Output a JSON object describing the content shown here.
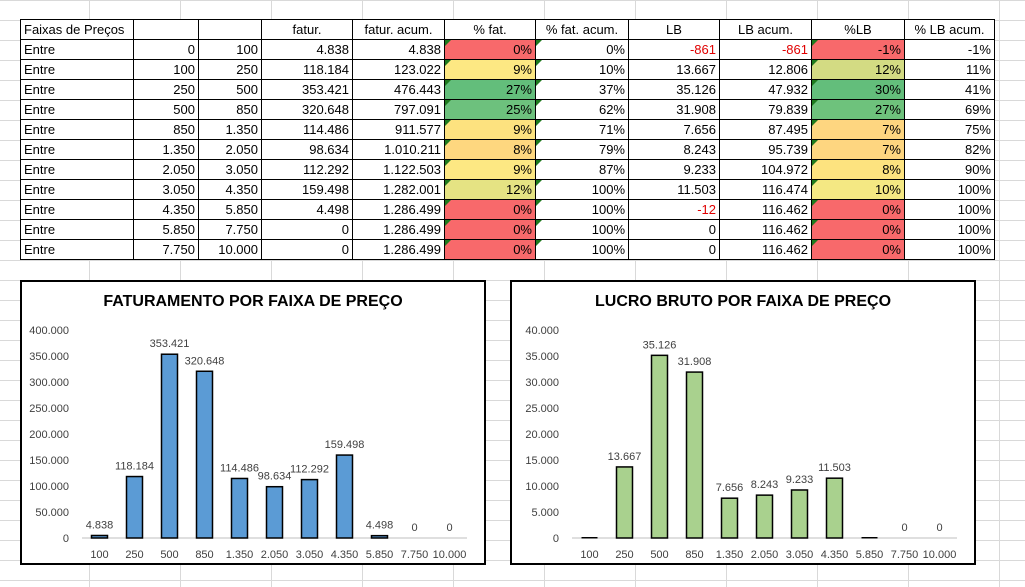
{
  "table": {
    "headers": [
      "Faixas de Preços",
      "",
      "",
      "fatur.",
      "fatur. acum.",
      "% fat.",
      "% fat. acum.",
      "LB",
      "LB acum.",
      "%LB",
      "% LB acum."
    ],
    "rows": [
      [
        "Entre",
        "0",
        "100",
        "4.838",
        "4.838",
        "0%",
        "0%",
        "-861",
        "-861",
        "-1%",
        "-1%"
      ],
      [
        "Entre",
        "100",
        "250",
        "118.184",
        "123.022",
        "9%",
        "10%",
        "13.667",
        "12.806",
        "12%",
        "11%"
      ],
      [
        "Entre",
        "250",
        "500",
        "353.421",
        "476.443",
        "27%",
        "37%",
        "35.126",
        "47.932",
        "30%",
        "41%"
      ],
      [
        "Entre",
        "500",
        "850",
        "320.648",
        "797.091",
        "25%",
        "62%",
        "31.908",
        "79.839",
        "27%",
        "69%"
      ],
      [
        "Entre",
        "850",
        "1.350",
        "114.486",
        "911.577",
        "9%",
        "71%",
        "7.656",
        "87.495",
        "7%",
        "75%"
      ],
      [
        "Entre",
        "1.350",
        "2.050",
        "98.634",
        "1.010.211",
        "8%",
        "79%",
        "8.243",
        "95.739",
        "7%",
        "82%"
      ],
      [
        "Entre",
        "2.050",
        "3.050",
        "112.292",
        "1.122.503",
        "9%",
        "87%",
        "9.233",
        "104.972",
        "8%",
        "90%"
      ],
      [
        "Entre",
        "3.050",
        "4.350",
        "159.498",
        "1.282.001",
        "12%",
        "100%",
        "11.503",
        "116.474",
        "10%",
        "100%"
      ],
      [
        "Entre",
        "4.350",
        "5.850",
        "4.498",
        "1.286.499",
        "0%",
        "100%",
        "-12",
        "116.462",
        "0%",
        "100%"
      ],
      [
        "Entre",
        "5.850",
        "7.750",
        "0",
        "1.286.499",
        "0%",
        "100%",
        "0",
        "116.462",
        "0%",
        "100%"
      ],
      [
        "Entre",
        "7.750",
        "10.000",
        "0",
        "1.286.499",
        "0%",
        "100%",
        "0",
        "116.462",
        "0%",
        "100%"
      ]
    ],
    "pct_fat_colors": [
      "#f8696b",
      "#fde883",
      "#63be7b",
      "#6dc17d",
      "#fde27f",
      "#fed77f",
      "#fde883",
      "#e5e383",
      "#f8696b",
      "#f8696b",
      "#f8696b"
    ],
    "pct_lb_colors": [
      "#f8696b",
      "#d3db83",
      "#63be7b",
      "#6ec27c",
      "#fed680",
      "#fed680",
      "#fde37f",
      "#f4e883",
      "#f8696b",
      "#f8696b",
      "#f8696b"
    ],
    "negative_color": "#e00000"
  },
  "chart_data": [
    {
      "type": "bar",
      "title": "FATURAMENTO POR FAIXA DE PREÇO",
      "categories": [
        "100",
        "250",
        "500",
        "850",
        "1.350",
        "2.050",
        "3.050",
        "4.350",
        "5.850",
        "7.750",
        "10.000"
      ],
      "values": [
        4838,
        118184,
        353421,
        320648,
        114486,
        98634,
        112292,
        159498,
        4498,
        0,
        0
      ],
      "value_labels": [
        "4.838",
        "118.184",
        "353.421",
        "320.648",
        "114.486",
        "98.634",
        "112.292",
        "159.498",
        "4.498",
        "0",
        "0"
      ],
      "yticks": [
        "0",
        "50.000",
        "100.000",
        "150.000",
        "200.000",
        "250.000",
        "300.000",
        "350.000",
        "400.000"
      ],
      "ylim": [
        0,
        400000
      ],
      "bar_color": "#5b9bd5",
      "xlabel": "",
      "ylabel": "",
      "grid": false
    },
    {
      "type": "bar",
      "title": "LUCRO BRUTO POR FAIXA DE PREÇO",
      "categories": [
        "100",
        "250",
        "500",
        "850",
        "1.350",
        "2.050",
        "3.050",
        "4.350",
        "5.850",
        "7.750",
        "10.000"
      ],
      "values": [
        -861,
        13667,
        35126,
        31908,
        7656,
        8243,
        9233,
        11503,
        -12,
        0,
        0
      ],
      "value_labels": [
        "",
        "13.667",
        "35.126",
        "31.908",
        "7.656",
        "8.243",
        "9.233",
        "11.503",
        "",
        "0",
        "0"
      ],
      "yticks": [
        "0",
        "5.000",
        "10.000",
        "15.000",
        "20.000",
        "25.000",
        "30.000",
        "35.000",
        "40.000"
      ],
      "ylim": [
        0,
        40000
      ],
      "bar_color": "#a9d18e",
      "xlabel": "",
      "ylabel": "",
      "grid": false
    }
  ]
}
